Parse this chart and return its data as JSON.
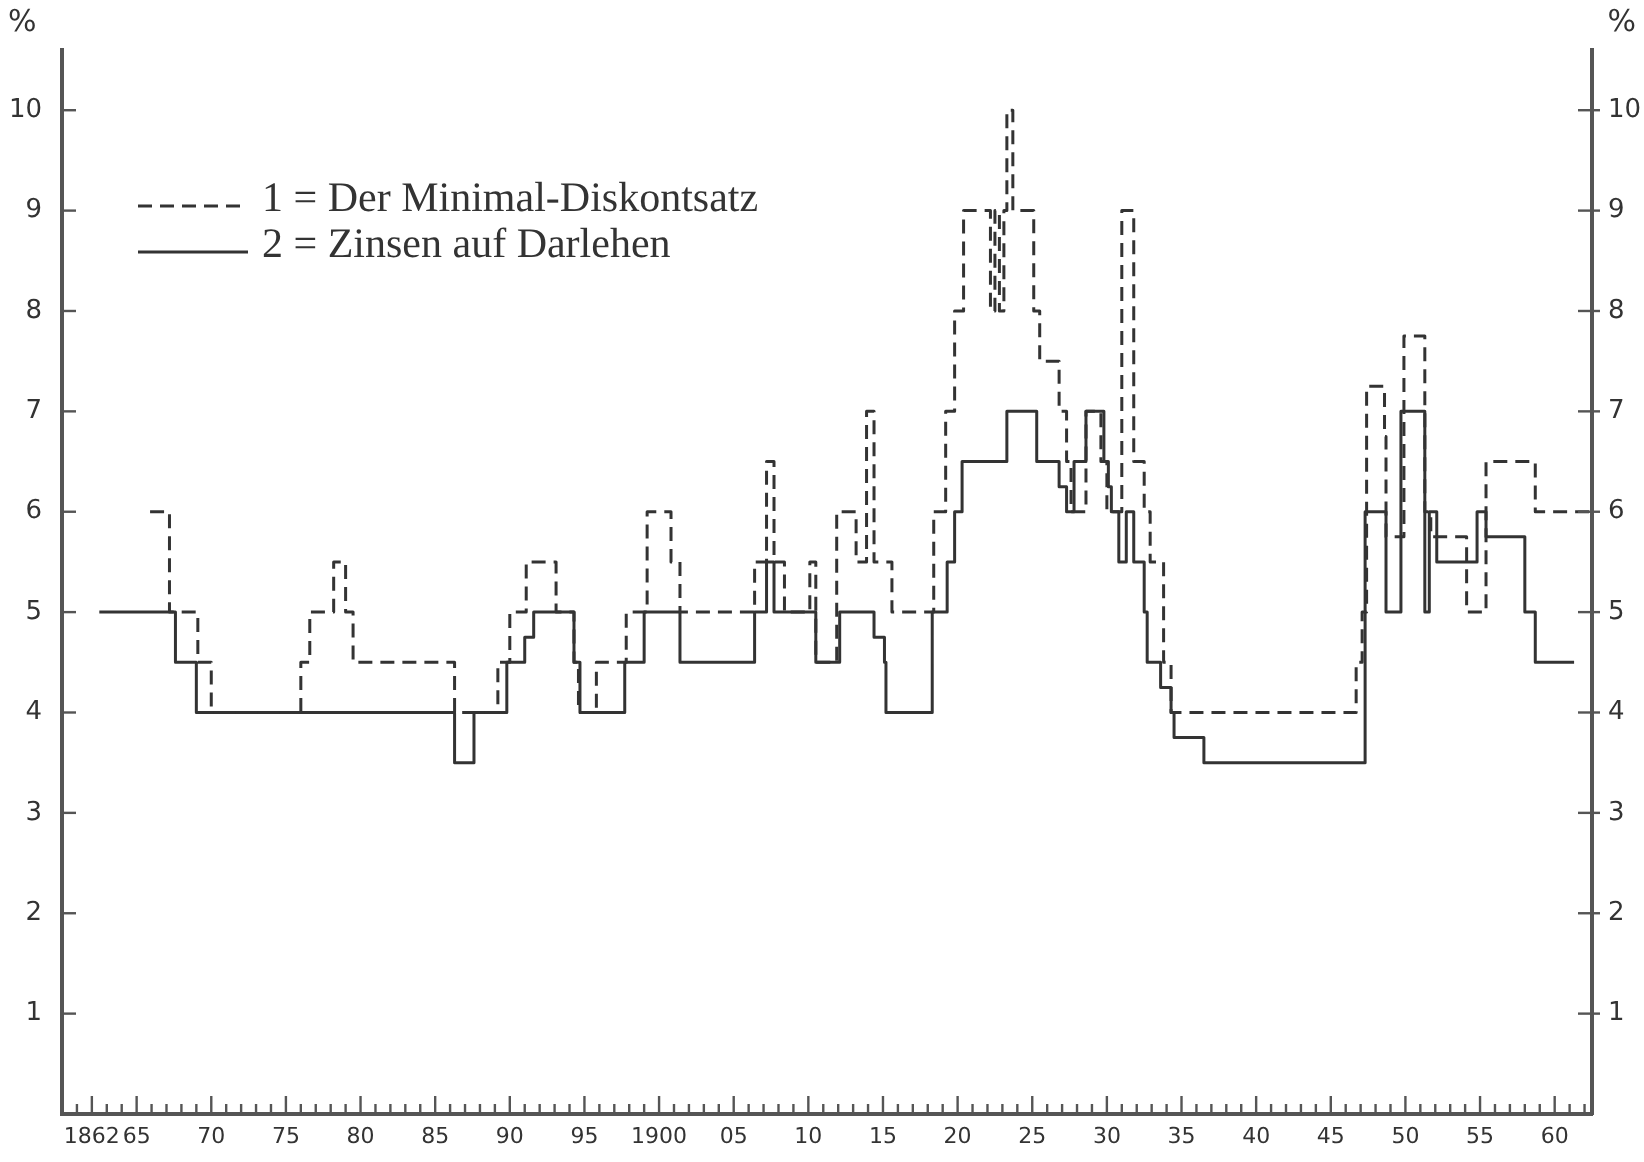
{
  "chart_data": {
    "type": "step",
    "ylabel": "%",
    "y2label": "%",
    "xlim": [
      1860,
      1962.5
    ],
    "xticks": [
      {
        "value": 1861,
        "label": null
      },
      {
        "value": 1862,
        "label": "1862"
      },
      {
        "value": 1863,
        "label": null
      },
      {
        "value": 1864,
        "label": null
      },
      {
        "value": 1865,
        "label": "65"
      },
      {
        "value": 1866,
        "label": null
      },
      {
        "value": 1867,
        "label": null
      },
      {
        "value": 1868,
        "label": null
      },
      {
        "value": 1869,
        "label": null
      },
      {
        "value": 1870,
        "label": "70"
      },
      {
        "value": 1871,
        "label": null
      },
      {
        "value": 1872,
        "label": null
      },
      {
        "value": 1873,
        "label": null
      },
      {
        "value": 1874,
        "label": null
      },
      {
        "value": 1875,
        "label": "75"
      },
      {
        "value": 1876,
        "label": null
      },
      {
        "value": 1877,
        "label": null
      },
      {
        "value": 1878,
        "label": null
      },
      {
        "value": 1879,
        "label": null
      },
      {
        "value": 1880,
        "label": "80"
      },
      {
        "value": 1881,
        "label": null
      },
      {
        "value": 1882,
        "label": null
      },
      {
        "value": 1883,
        "label": null
      },
      {
        "value": 1884,
        "label": null
      },
      {
        "value": 1885,
        "label": "85"
      },
      {
        "value": 1886,
        "label": null
      },
      {
        "value": 1887,
        "label": null
      },
      {
        "value": 1888,
        "label": null
      },
      {
        "value": 1889,
        "label": null
      },
      {
        "value": 1890,
        "label": "90"
      },
      {
        "value": 1891,
        "label": null
      },
      {
        "value": 1892,
        "label": null
      },
      {
        "value": 1893,
        "label": null
      },
      {
        "value": 1894,
        "label": null
      },
      {
        "value": 1895,
        "label": "95"
      },
      {
        "value": 1896,
        "label": null
      },
      {
        "value": 1897,
        "label": null
      },
      {
        "value": 1898,
        "label": null
      },
      {
        "value": 1899,
        "label": null
      },
      {
        "value": 1900,
        "label": "1900"
      },
      {
        "value": 1901,
        "label": null
      },
      {
        "value": 1902,
        "label": null
      },
      {
        "value": 1903,
        "label": null
      },
      {
        "value": 1904,
        "label": null
      },
      {
        "value": 1905,
        "label": "05"
      },
      {
        "value": 1906,
        "label": null
      },
      {
        "value": 1907,
        "label": null
      },
      {
        "value": 1908,
        "label": null
      },
      {
        "value": 1909,
        "label": null
      },
      {
        "value": 1910,
        "label": "10"
      },
      {
        "value": 1911,
        "label": null
      },
      {
        "value": 1912,
        "label": null
      },
      {
        "value": 1913,
        "label": null
      },
      {
        "value": 1914,
        "label": null
      },
      {
        "value": 1915,
        "label": "15"
      },
      {
        "value": 1916,
        "label": null
      },
      {
        "value": 1917,
        "label": null
      },
      {
        "value": 1918,
        "label": null
      },
      {
        "value": 1919,
        "label": null
      },
      {
        "value": 1920,
        "label": "20"
      },
      {
        "value": 1921,
        "label": null
      },
      {
        "value": 1922,
        "label": null
      },
      {
        "value": 1923,
        "label": null
      },
      {
        "value": 1924,
        "label": null
      },
      {
        "value": 1925,
        "label": "25"
      },
      {
        "value": 1926,
        "label": null
      },
      {
        "value": 1927,
        "label": null
      },
      {
        "value": 1928,
        "label": null
      },
      {
        "value": 1929,
        "label": null
      },
      {
        "value": 1930,
        "label": "30"
      },
      {
        "value": 1931,
        "label": null
      },
      {
        "value": 1932,
        "label": null
      },
      {
        "value": 1933,
        "label": null
      },
      {
        "value": 1934,
        "label": null
      },
      {
        "value": 1935,
        "label": "35"
      },
      {
        "value": 1936,
        "label": null
      },
      {
        "value": 1937,
        "label": null
      },
      {
        "value": 1938,
        "label": null
      },
      {
        "value": 1939,
        "label": null
      },
      {
        "value": 1940,
        "label": "40"
      },
      {
        "value": 1941,
        "label": null
      },
      {
        "value": 1942,
        "label": null
      },
      {
        "value": 1943,
        "label": null
      },
      {
        "value": 1944,
        "label": null
      },
      {
        "value": 1945,
        "label": "45"
      },
      {
        "value": 1946,
        "label": null
      },
      {
        "value": 1947,
        "label": null
      },
      {
        "value": 1948,
        "label": null
      },
      {
        "value": 1949,
        "label": null
      },
      {
        "value": 1950,
        "label": "50"
      },
      {
        "value": 1951,
        "label": null
      },
      {
        "value": 1952,
        "label": null
      },
      {
        "value": 1953,
        "label": null
      },
      {
        "value": 1954,
        "label": null
      },
      {
        "value": 1955,
        "label": "55"
      },
      {
        "value": 1956,
        "label": null
      },
      {
        "value": 1957,
        "label": null
      },
      {
        "value": 1958,
        "label": null
      },
      {
        "value": 1959,
        "label": null
      },
      {
        "value": 1960,
        "label": "60"
      },
      {
        "value": 1961,
        "label": null
      },
      {
        "value": 1962,
        "label": null
      }
    ],
    "ylim": [
      0,
      10.6
    ],
    "yticks": [
      1,
      2,
      3,
      4,
      5,
      6,
      7,
      8,
      9,
      10
    ],
    "y2lim": [
      0,
      10.6
    ],
    "y2ticks": [
      1,
      2,
      3,
      4,
      5,
      6,
      7,
      8,
      9,
      10
    ],
    "grid": false,
    "legend": "top left",
    "series": [
      {
        "name": "1 = Der Minimal-Diskontsatz",
        "color": "#333333",
        "line_style": "dashed",
        "x": [
          1865.9,
          1867.2,
          1869.1,
          1870,
          1876,
          1876.6,
          1878.2,
          1879,
          1879.5,
          1886.3,
          1889.2,
          1890,
          1891.1,
          1893.1,
          1894.3,
          1894.6,
          1895.8,
          1897.8,
          1899.2,
          1900.8,
          1901.4,
          1906.4,
          1907.2,
          1907.7,
          1908.4,
          1910.1,
          1910.5,
          1911.9,
          1913.2,
          1913.9,
          1914.4,
          1915.6,
          1918.4,
          1919.2,
          1919.8,
          1920.4,
          1922.2,
          1922.5,
          1922.8,
          1923.1,
          1923.3,
          1923.7,
          1925.1,
          1925.5,
          1926.8,
          1927.3,
          1927.6,
          1928.6,
          1929.6,
          1930,
          1931,
          1931.8,
          1932.5,
          1932.9,
          1933.8,
          1934.3,
          1946.7,
          1947.1,
          1947.4,
          1948.6,
          1948.7,
          1949.9,
          1951.3,
          1951.7,
          1954.1,
          1955.4,
          1958.7,
          1962.5
        ],
        "values": [
          6,
          5,
          4.5,
          4,
          4.5,
          5,
          5.5,
          5,
          4.5,
          4,
          4.5,
          5,
          5.5,
          5,
          4.5,
          4,
          4.5,
          5,
          6,
          5.5,
          5,
          5.5,
          6.5,
          5.5,
          5,
          5.5,
          4.5,
          6,
          5.5,
          7,
          5.5,
          5,
          6,
          7,
          8,
          9,
          8,
          9,
          8,
          9,
          10,
          9,
          8,
          7.5,
          7,
          6.5,
          6,
          7,
          6.5,
          6,
          9,
          6.5,
          6,
          5.5,
          4.5,
          4,
          4.5,
          5,
          7.25,
          6.75,
          5.75,
          7.75,
          6,
          5.75,
          5,
          6.5,
          6,
          6
        ]
      },
      {
        "name": "2 = Zinsen auf Darlehen",
        "color": "#333333",
        "line_style": "solid",
        "x": [
          1862.5,
          1867.6,
          1869,
          1886.3,
          1887.6,
          1889.8,
          1891,
          1891.6,
          1894.3,
          1894.7,
          1897.7,
          1899,
          1901.4,
          1906.4,
          1907.2,
          1907.7,
          1910.5,
          1912.1,
          1914.4,
          1915.1,
          1915.2,
          1918.3,
          1919.3,
          1919.8,
          1920.3,
          1923.3,
          1925.3,
          1926.8,
          1927.3,
          1927.8,
          1928.6,
          1929.8,
          1930.1,
          1930.3,
          1930.8,
          1931.3,
          1931.8,
          1932.5,
          1932.7,
          1933.6,
          1934.3,
          1934.5,
          1936.5,
          1947.3,
          1948.7,
          1949.7,
          1951.3,
          1951.6,
          1952.1,
          1954.8,
          1955.4,
          1958,
          1958.7,
          1961.3
        ],
        "values": [
          5,
          4.5,
          4,
          3.5,
          4,
          4.5,
          4.75,
          5,
          4.5,
          4,
          4.5,
          5,
          4.5,
          5,
          5.5,
          5,
          4.5,
          5,
          4.75,
          4.5,
          4,
          5,
          5.5,
          6,
          6.5,
          7,
          6.5,
          6.25,
          6,
          6.5,
          7,
          6.5,
          6.25,
          6,
          5.5,
          6,
          5.5,
          5,
          4.5,
          4.25,
          4,
          3.75,
          3.5,
          6,
          5,
          7,
          5,
          6,
          5.5,
          6,
          5.75,
          5,
          4.5,
          4.5
        ]
      }
    ]
  }
}
